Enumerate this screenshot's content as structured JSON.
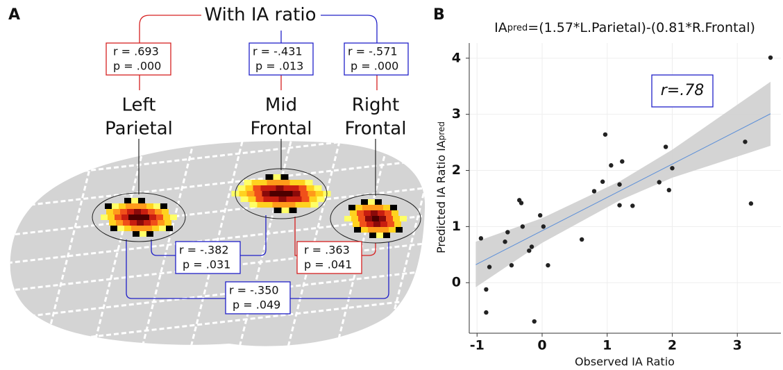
{
  "panel_labels": [
    "A",
    "B"
  ],
  "diagram": {
    "title": "With IA ratio",
    "regions": [
      {
        "name": [
          "Left",
          "Parietal"
        ],
        "r": "r = .693",
        "p": "p = .000"
      },
      {
        "name": [
          "Mid",
          "Frontal"
        ],
        "r": "r = -.431",
        "p": "p = .013"
      },
      {
        "name": [
          "Right",
          "Frontal"
        ],
        "r": "r = -.571",
        "p": "p = .000"
      }
    ],
    "pairs": [
      {
        "r": "r = -.382",
        "p": "p = .031"
      },
      {
        "r": "r = .363",
        "p": "p = .041"
      },
      {
        "r": "r = -.350",
        "p": "p = .049"
      }
    ]
  },
  "chart_data": {
    "type": "scatter",
    "title": {
      "main": "IA",
      "sub": "pred",
      "rest": "=(1.57*L.Parietal)-(0.81*R.Frontal)"
    },
    "x_label": "Observed IA Ratio",
    "y_label": {
      "main": "Predicted IA Ratio IA",
      "sub": "pred"
    },
    "annotation": "r=.78",
    "x": [
      3.51,
      0.97,
      1.06,
      1.23,
      1.9,
      2.0,
      3.12,
      0.93,
      0.8,
      1.19,
      1.8,
      1.95,
      1.19,
      1.39,
      3.21,
      -0.35,
      -0.32,
      -0.03,
      -0.53,
      -0.3,
      0.02,
      -0.57,
      -0.94,
      -0.16,
      -0.2,
      0.61,
      -0.81,
      -0.47,
      0.09,
      -0.86,
      -0.86,
      -0.12
    ],
    "y": [
      4.01,
      2.64,
      2.09,
      2.16,
      2.42,
      2.04,
      2.51,
      1.8,
      1.63,
      1.75,
      1.79,
      1.65,
      1.38,
      1.37,
      1.41,
      1.47,
      1.42,
      1.2,
      0.9,
      1.0,
      1.0,
      0.73,
      0.79,
      0.64,
      0.57,
      0.77,
      0.28,
      0.31,
      0.31,
      -0.12,
      -0.53,
      -0.69
    ],
    "color": "#222222",
    "fit": {
      "x": [
        -1.02,
        3.51
      ],
      "y": [
        0.32,
        3.01
      ],
      "color": "#5b8fd9"
    },
    "band": {
      "x": [
        -1.02,
        0,
        1.2,
        2,
        3.51
      ],
      "upper": [
        0.73,
        1.15,
        1.81,
        2.37,
        3.58
      ],
      "lower": [
        -0.08,
        0.71,
        1.47,
        1.87,
        2.44
      ],
      "color": "#cfcfcf"
    },
    "xlim": [
      -1.12,
      3.67
    ],
    "ylim": [
      -0.9,
      4.27
    ],
    "xticks": [
      -1,
      0,
      1,
      2,
      3
    ],
    "yticks": [
      0,
      1,
      2,
      3,
      4
    ],
    "grid": true
  }
}
